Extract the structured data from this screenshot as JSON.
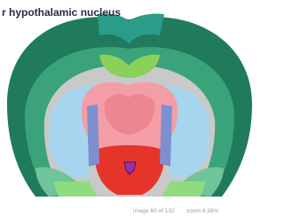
{
  "header": {
    "title": "r hypothalamic nucleus"
  },
  "footer": {
    "image_counter": "image 60 of 132",
    "zoom": "zoom 4.38%"
  }
}
